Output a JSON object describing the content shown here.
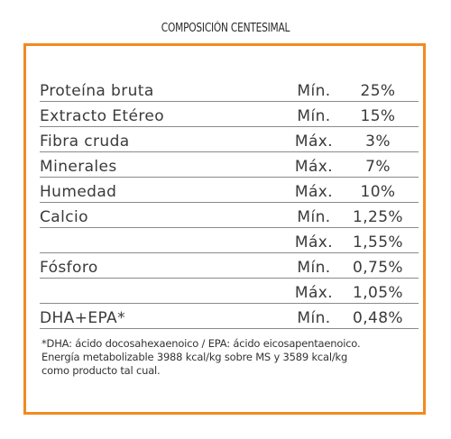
{
  "heading": "COMPOSICIÓN CENTESIMAL",
  "rows": [
    {
      "label": "Proteína bruta",
      "qualifier": "Mín.",
      "value": "25%"
    },
    {
      "label": "Extracto Etéreo",
      "qualifier": "Mín.",
      "value": "15%"
    },
    {
      "label": "Fibra cruda",
      "qualifier": "Máx.",
      "value": "3%"
    },
    {
      "label": "Minerales",
      "qualifier": "Máx.",
      "value": "7%"
    },
    {
      "label": "Humedad",
      "qualifier": "Máx.",
      "value": "10%"
    },
    {
      "label": "Calcio",
      "qualifier": "Mín.",
      "value": "1,25%"
    },
    {
      "label": "",
      "qualifier": "Máx.",
      "value": "1,55%"
    },
    {
      "label": "Fósforo",
      "qualifier": "Mín.",
      "value": "0,75%"
    },
    {
      "label": "",
      "qualifier": "Máx.",
      "value": "1,05%"
    },
    {
      "label": "DHA+EPA*",
      "qualifier": "Mín.",
      "value": "0,48%"
    }
  ],
  "footnote": {
    "line1": "*DHA: ácido docosahexaenoico / EPA: ácido eicosapentaenoico.",
    "line2": "Energía metabolizable 3988 kcal/kg sobre MS y 3589 kcal/kg",
    "line3": "como producto tal cual."
  },
  "colors": {
    "border": "#f28a20",
    "text": "#3a3a3a",
    "rule": "#8a8a8a"
  }
}
